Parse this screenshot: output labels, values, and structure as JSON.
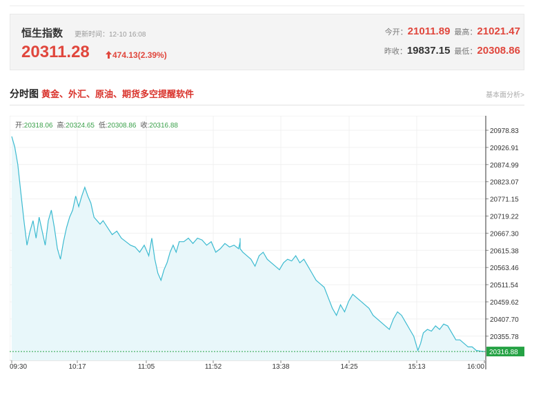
{
  "quote": {
    "name": "恒生指数",
    "update_time": "更新时间：12-10 16:08",
    "price": "20311.28",
    "change": "474.13(2.39%)",
    "stats": {
      "open_label": "今开：",
      "open": "21011.89",
      "high_label": "最高：",
      "high": "21021.47",
      "prev_close_label": "昨收：",
      "prev_close": "19837.15",
      "low_label": "最低：",
      "low": "20308.86"
    }
  },
  "section": {
    "title": "分时图",
    "promo_link": "黄金、外汇、原油、期货多空提醒软件",
    "more_link": "基本面分析>"
  },
  "ohlc": {
    "open_label": "开:",
    "open": "20318.06",
    "high_label": "高:",
    "high": "20324.65",
    "low_label": "低:",
    "low": "20308.86",
    "close_label": "收:",
    "close": "20316.88"
  },
  "colors": {
    "up": "#e0463c",
    "line": "#3bbad0",
    "area": "#e8f7fa",
    "last_price_tag": "#25a244"
  },
  "chart_data": {
    "type": "area",
    "x_ticks": [
      "09:30",
      "10:17",
      "11:05",
      "11:52",
      "13:38",
      "14:25",
      "15:13",
      "16:00"
    ],
    "y_ticks": [
      "20978.83",
      "20926.91",
      "20874.99",
      "20823.07",
      "20771.15",
      "20719.22",
      "20667.30",
      "20615.38",
      "20563.46",
      "20511.54",
      "20459.62",
      "20407.70",
      "20355.78"
    ],
    "last_price_label": "20316.88",
    "ylim": [
      20320,
      21000
    ],
    "grid": true,
    "points": [
      [
        "09:30",
        20930
      ],
      [
        "09:32",
        20900
      ],
      [
        "09:34",
        20850
      ],
      [
        "09:36",
        20770
      ],
      [
        "09:38",
        20690
      ],
      [
        "09:40",
        20620
      ],
      [
        "09:42",
        20660
      ],
      [
        "09:44",
        20690
      ],
      [
        "09:46",
        20640
      ],
      [
        "09:48",
        20700
      ],
      [
        "09:50",
        20660
      ],
      [
        "09:52",
        20620
      ],
      [
        "09:54",
        20690
      ],
      [
        "09:56",
        20720
      ],
      [
        "09:58",
        20670
      ],
      [
        "10:00",
        20610
      ],
      [
        "10:02",
        20580
      ],
      [
        "10:04",
        20630
      ],
      [
        "10:06",
        20670
      ],
      [
        "10:08",
        20700
      ],
      [
        "10:10",
        20720
      ],
      [
        "10:12",
        20760
      ],
      [
        "10:14",
        20730
      ],
      [
        "10:16",
        20760
      ],
      [
        "10:18",
        20785
      ],
      [
        "10:20",
        20760
      ],
      [
        "10:22",
        20740
      ],
      [
        "10:24",
        20700
      ],
      [
        "10:26",
        20690
      ],
      [
        "10:28",
        20680
      ],
      [
        "10:30",
        20690
      ],
      [
        "10:33",
        20670
      ],
      [
        "10:36",
        20650
      ],
      [
        "10:39",
        20660
      ],
      [
        "10:42",
        20640
      ],
      [
        "10:45",
        20630
      ],
      [
        "10:48",
        20620
      ],
      [
        "10:51",
        20615
      ],
      [
        "10:54",
        20600
      ],
      [
        "10:57",
        20620
      ],
      [
        "11:00",
        20590
      ],
      [
        "11:02",
        20640
      ],
      [
        "11:04",
        20580
      ],
      [
        "11:06",
        20540
      ],
      [
        "11:08",
        20520
      ],
      [
        "11:10",
        20550
      ],
      [
        "11:12",
        20570
      ],
      [
        "11:14",
        20600
      ],
      [
        "11:16",
        20620
      ],
      [
        "11:18",
        20600
      ],
      [
        "11:20",
        20630
      ],
      [
        "11:23",
        20630
      ],
      [
        "11:26",
        20640
      ],
      [
        "11:29",
        20625
      ],
      [
        "11:32",
        20640
      ],
      [
        "11:35",
        20635
      ],
      [
        "11:38",
        20620
      ],
      [
        "11:41",
        20630
      ],
      [
        "11:44",
        20600
      ],
      [
        "11:47",
        20610
      ],
      [
        "11:50",
        20625
      ],
      [
        "11:53",
        20615
      ],
      [
        "11:56",
        20620
      ],
      [
        "11:59",
        20610
      ],
      [
        "12:02",
        20630
      ],
      [
        "12:05",
        20640
      ],
      [
        "12:08",
        20610
      ],
      [
        "13:02",
        20600
      ],
      [
        "13:05",
        20590
      ],
      [
        "13:08",
        20580
      ],
      [
        "13:11",
        20560
      ],
      [
        "13:14",
        20590
      ],
      [
        "13:17",
        20600
      ],
      [
        "13:20",
        20580
      ],
      [
        "13:23",
        20570
      ],
      [
        "13:26",
        20560
      ],
      [
        "13:29",
        20550
      ],
      [
        "13:32",
        20570
      ],
      [
        "13:35",
        20580
      ],
      [
        "13:38",
        20575
      ],
      [
        "13:41",
        20590
      ],
      [
        "13:44",
        20570
      ],
      [
        "13:47",
        20580
      ],
      [
        "13:50",
        20560
      ],
      [
        "13:53",
        20540
      ],
      [
        "13:56",
        20520
      ],
      [
        "13:59",
        20510
      ],
      [
        "14:02",
        20500
      ],
      [
        "14:05",
        20470
      ],
      [
        "14:08",
        20440
      ],
      [
        "14:11",
        20420
      ],
      [
        "14:14",
        20450
      ],
      [
        "14:17",
        20430
      ],
      [
        "14:20",
        20460
      ],
      [
        "14:23",
        20480
      ],
      [
        "14:26",
        20470
      ],
      [
        "14:29",
        20460
      ],
      [
        "14:32",
        20450
      ],
      [
        "14:35",
        20440
      ],
      [
        "14:38",
        20420
      ],
      [
        "14:41",
        20410
      ],
      [
        "14:44",
        20400
      ],
      [
        "14:47",
        20390
      ],
      [
        "14:50",
        20380
      ],
      [
        "14:53",
        20410
      ],
      [
        "14:56",
        20430
      ],
      [
        "14:59",
        20420
      ],
      [
        "15:02",
        20400
      ],
      [
        "15:05",
        20380
      ],
      [
        "15:08",
        20360
      ],
      [
        "15:11",
        20320
      ],
      [
        "15:13",
        20340
      ],
      [
        "15:15",
        20370
      ],
      [
        "15:18",
        20380
      ],
      [
        "15:21",
        20375
      ],
      [
        "15:24",
        20390
      ],
      [
        "15:27",
        20380
      ],
      [
        "15:30",
        20395
      ],
      [
        "15:33",
        20390
      ],
      [
        "15:36",
        20370
      ],
      [
        "15:39",
        20350
      ],
      [
        "15:42",
        20350
      ],
      [
        "15:45",
        20340
      ],
      [
        "15:48",
        20330
      ],
      [
        "15:51",
        20330
      ],
      [
        "15:54",
        20320
      ],
      [
        "15:57",
        20318
      ],
      [
        "16:00",
        20316.88
      ]
    ]
  }
}
